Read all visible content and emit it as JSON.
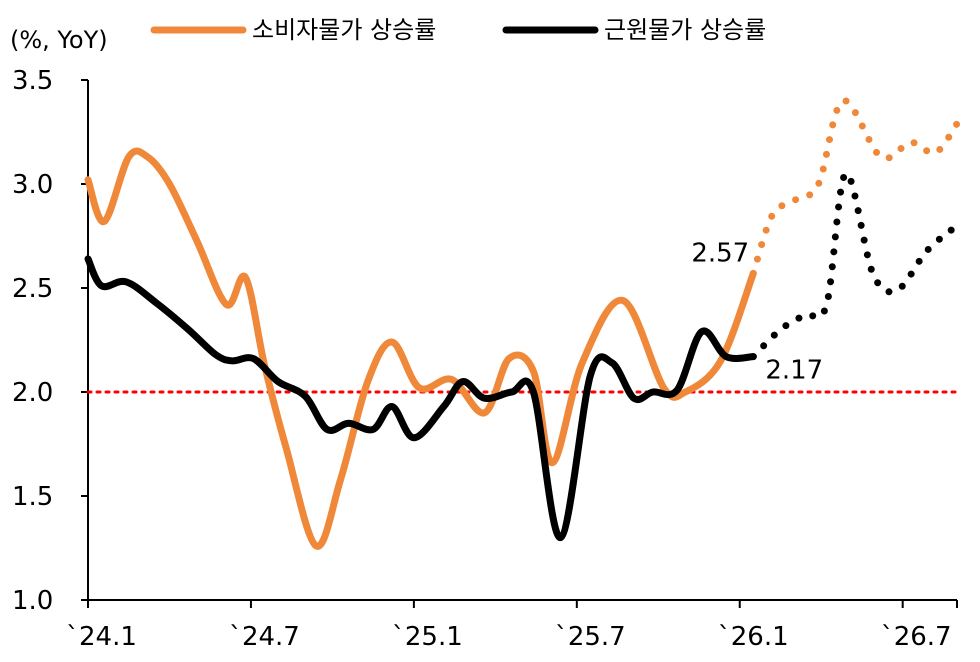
{
  "chart_data": {
    "type": "line",
    "unit_label": "(%, YoY)",
    "ylim": [
      1.0,
      3.5
    ],
    "yticks": [
      "3.5",
      "3.0",
      "2.5",
      "2.0",
      "1.5",
      "1.0"
    ],
    "x_start_month": 0,
    "x_end_month": 32,
    "xtick_labels": [
      "`24.1",
      "`24.7",
      "`25.1",
      "`25.7",
      "`26.1",
      "`26.7"
    ],
    "reference_line": {
      "y": 2.0,
      "color": "#ff0000"
    },
    "legend": {
      "placement": "top"
    },
    "series": [
      {
        "name": "소비자물가 상승률",
        "color": "#f0883a",
        "actual": [
          [
            0,
            3.02
          ],
          [
            0.6,
            2.82
          ],
          [
            1.5,
            3.13
          ],
          [
            2.2,
            3.13
          ],
          [
            3,
            3.0
          ],
          [
            4,
            2.73
          ],
          [
            5.1,
            2.42
          ],
          [
            5.8,
            2.55
          ],
          [
            6.5,
            2.13
          ],
          [
            7.3,
            1.73
          ],
          [
            8.4,
            1.26
          ],
          [
            9.3,
            1.58
          ],
          [
            10.3,
            2.05
          ],
          [
            11.2,
            2.24
          ],
          [
            12.2,
            2.02
          ],
          [
            13.4,
            2.06
          ],
          [
            14.6,
            1.9
          ],
          [
            15.5,
            2.16
          ],
          [
            16.4,
            2.1
          ],
          [
            17.1,
            1.66
          ],
          [
            18.2,
            2.14
          ],
          [
            19.7,
            2.44
          ],
          [
            21.2,
            2.02
          ],
          [
            22,
            2.0
          ],
          [
            23.3,
            2.15
          ],
          [
            24.5,
            2.57
          ]
        ],
        "forecast": [
          [
            24.5,
            2.57
          ],
          [
            25.2,
            2.85
          ],
          [
            26,
            2.92
          ],
          [
            26.9,
            3.0
          ],
          [
            27.8,
            3.4
          ],
          [
            29.2,
            3.13
          ],
          [
            30.3,
            3.2
          ],
          [
            31.2,
            3.15
          ],
          [
            32,
            3.29
          ]
        ],
        "end_label": "2.57"
      },
      {
        "name": "근원물가 상승률",
        "color": "#000000",
        "actual": [
          [
            0,
            2.64
          ],
          [
            0.5,
            2.51
          ],
          [
            1.4,
            2.53
          ],
          [
            2.5,
            2.43
          ],
          [
            3.7,
            2.3
          ],
          [
            4.7,
            2.18
          ],
          [
            5.3,
            2.15
          ],
          [
            6.1,
            2.16
          ],
          [
            7,
            2.05
          ],
          [
            8,
            1.98
          ],
          [
            8.8,
            1.82
          ],
          [
            9.6,
            1.85
          ],
          [
            10.5,
            1.82
          ],
          [
            11.2,
            1.93
          ],
          [
            12,
            1.78
          ],
          [
            13.1,
            1.93
          ],
          [
            13.8,
            2.05
          ],
          [
            14.6,
            1.97
          ],
          [
            15.6,
            2.0
          ],
          [
            16.4,
            2.0
          ],
          [
            17.4,
            1.3
          ],
          [
            18.5,
            2.08
          ],
          [
            19.3,
            2.14
          ],
          [
            20.1,
            1.97
          ],
          [
            20.8,
            2.0
          ],
          [
            21.7,
            2.01
          ],
          [
            22.6,
            2.29
          ],
          [
            23.5,
            2.17
          ],
          [
            24.5,
            2.17
          ]
        ],
        "forecast": [
          [
            24.5,
            2.17
          ],
          [
            25.5,
            2.3
          ],
          [
            26.4,
            2.37
          ],
          [
            27.2,
            2.42
          ],
          [
            27.9,
            3.05
          ],
          [
            28.9,
            2.57
          ],
          [
            29.8,
            2.49
          ],
          [
            30.9,
            2.68
          ],
          [
            32,
            2.8
          ]
        ],
        "end_label": "2.17"
      }
    ]
  }
}
